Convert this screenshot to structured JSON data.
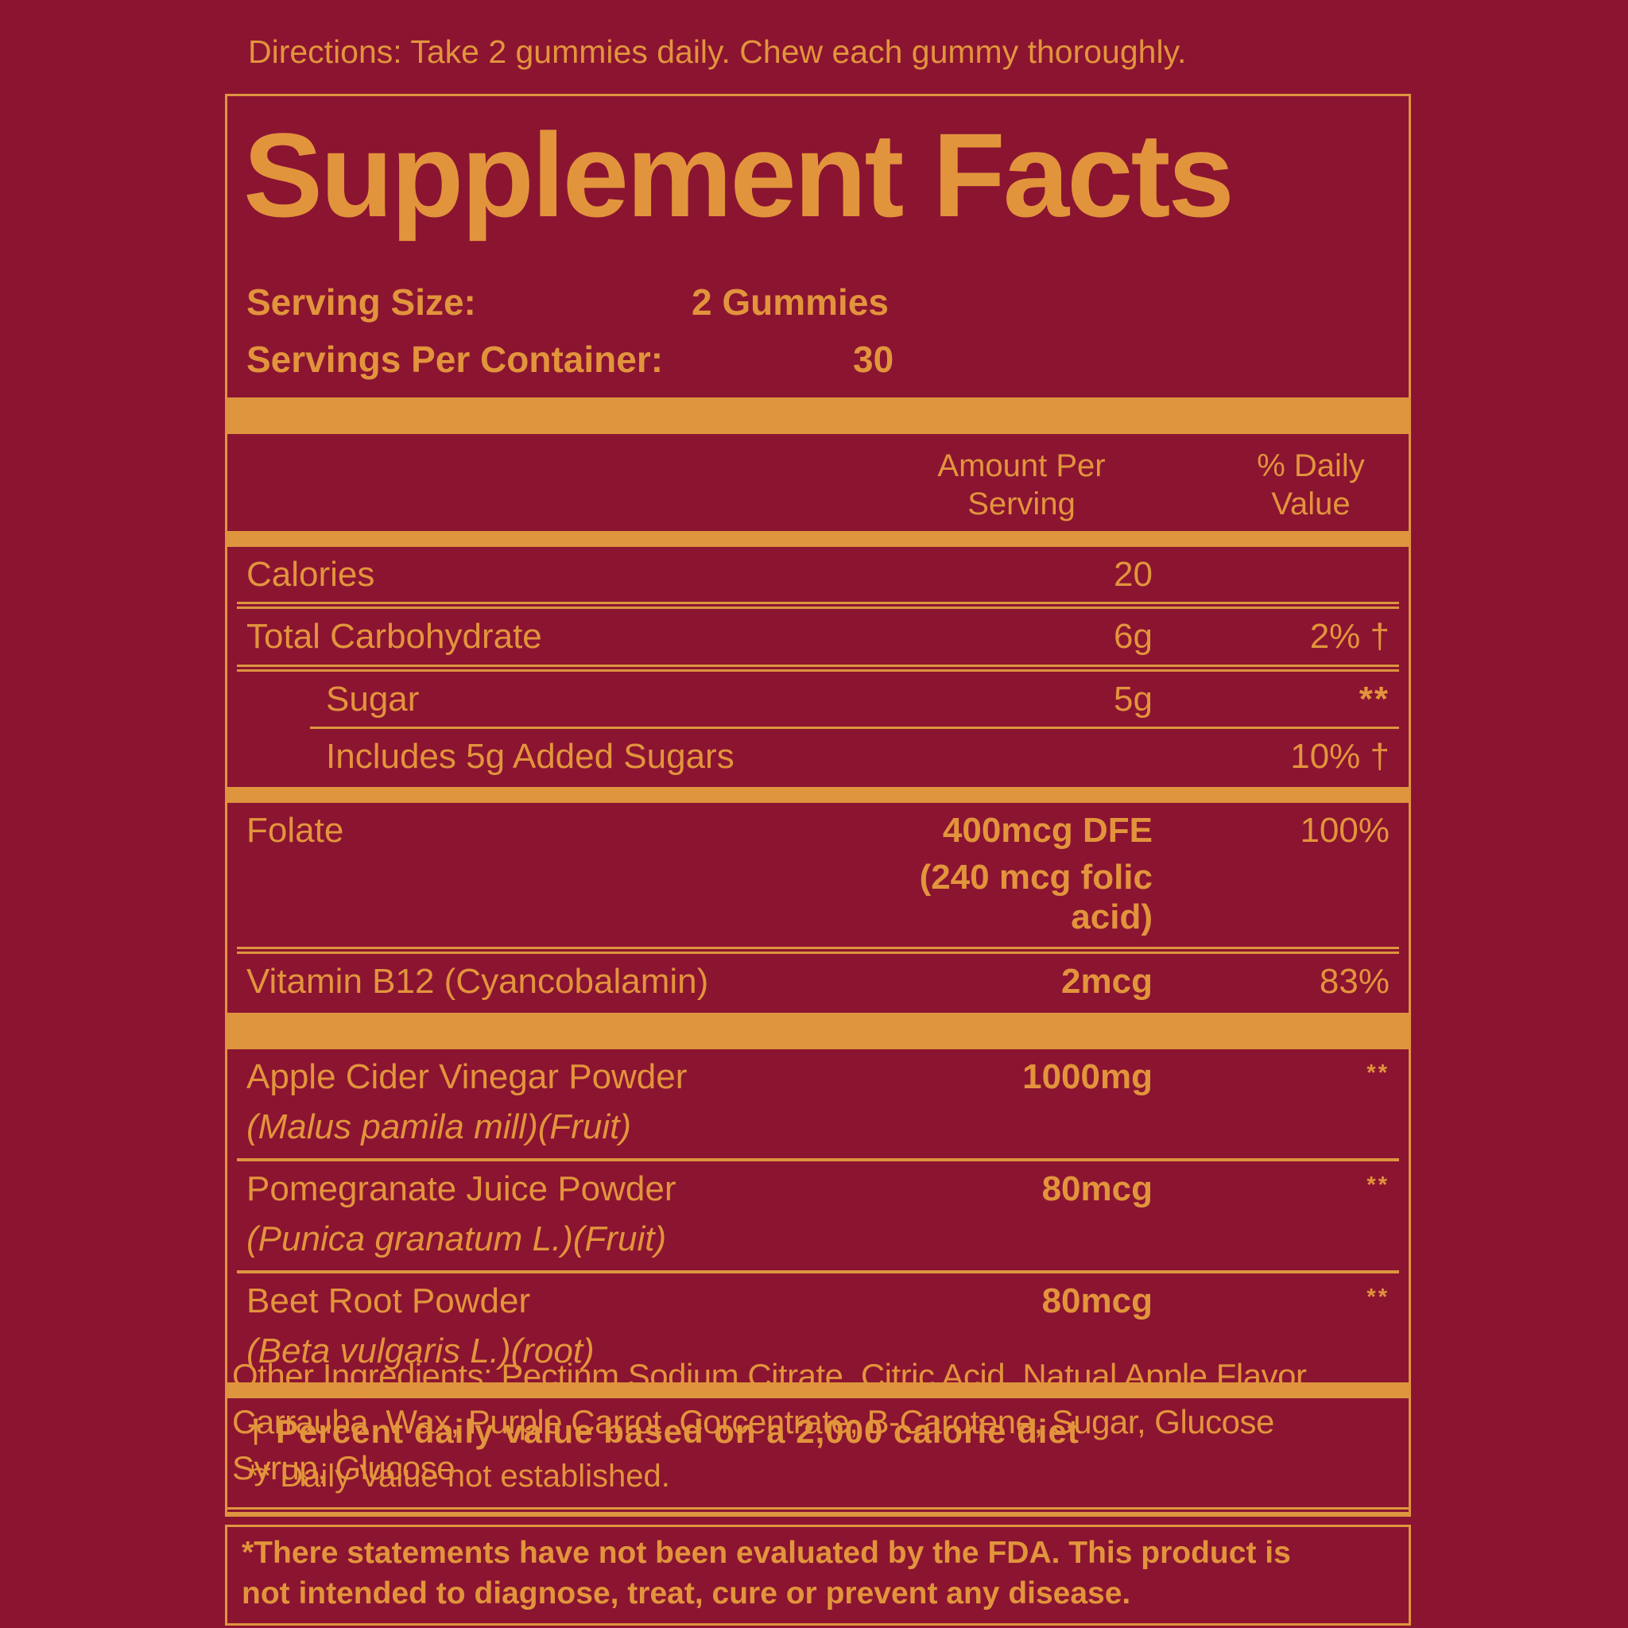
{
  "colors": {
    "background": "#8B1431",
    "text_orange": "#E2943C",
    "bar_orange": "#DE953E"
  },
  "directions": "Directions: Take 2 gummies daily. Chew each gummy thoroughly.",
  "panel": {
    "title": "Supplement Facts",
    "serving_size_label": "Serving Size:",
    "serving_size_value": "2 Gummies",
    "servings_per_container_label": "Servings Per Container:",
    "servings_per_container_value": "30",
    "amount_header_line1": "Amount Per",
    "amount_header_line2": "Serving",
    "dv_header_line1": "% Daily",
    "dv_header_line2": "Value",
    "macro_rows": [
      {
        "name": "Calories",
        "amount": "20",
        "dv": ""
      },
      {
        "name": "Total Carbohydrate",
        "amount": "6g",
        "dv": "2% †"
      },
      {
        "name": "Sugar",
        "amount": "5g",
        "dv": "**"
      },
      {
        "name": "Includes 5g Added Sugars",
        "amount": "",
        "dv": "10% †"
      }
    ],
    "vitamin_rows": [
      {
        "name": "Folate",
        "amount": "400mcg DFE",
        "amount_note": "(240 mcg folic acid)",
        "dv": "100%"
      },
      {
        "name": "Vitamin B12 (Cyancobalamin)",
        "amount": "2mcg",
        "dv": "83%"
      }
    ],
    "botanical_rows": [
      {
        "name": "Apple Cider Vinegar Powder",
        "amount": "1000mg",
        "dv": "**",
        "botanical": "(Malus pamila mill)(Fruit)"
      },
      {
        "name": "Pomegranate Juice Powder",
        "amount": "80mcg",
        "dv": "**",
        "botanical": "(Punica granatum L.)(Fruit)"
      },
      {
        "name": "Beet Root Powder",
        "amount": "80mcg",
        "dv": "**",
        "botanical": "(Beta vulgaris L.)(root)"
      }
    ],
    "footnotes": {
      "dagger": "† Percent daily value based on a 2,000 calorie diet",
      "asterisk": "** Daily Value not established."
    }
  },
  "other_ingredients_lines": [
    "Other Ingredients: Pectinm Sodium Citrate, Citric Acid, Natual Apple Flavor,",
    "Carrauba  Wax, Purple Carrot  Corcentrate, B-Carotene, Sugar, Glucose",
    "Syrup, Glucose"
  ],
  "disclaimer_lines": [
    "*There statements have not been evaluated by the FDA. This product is",
    "not intended to diagnose, treat, cure or prevent any disease."
  ]
}
